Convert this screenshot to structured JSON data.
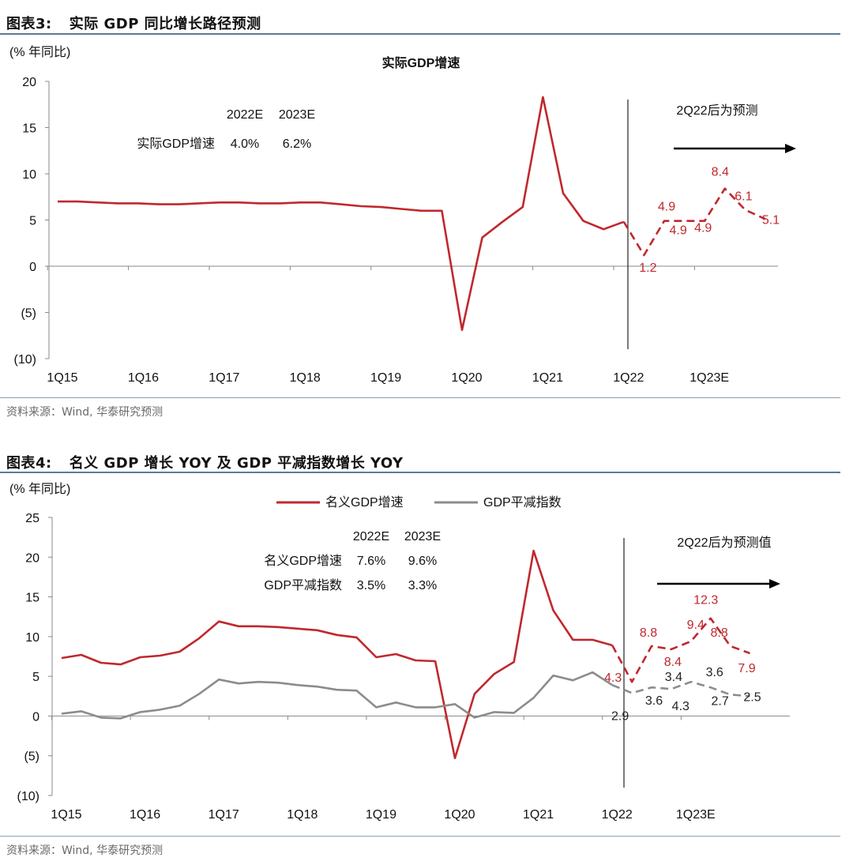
{
  "figure3": {
    "title_num": "图表3:",
    "title_text": "实际 GDP 同比增长路径预测",
    "source": "资料来源：Wind, 华泰研究预测",
    "chart_data": {
      "type": "line",
      "title": "实际GDP增速",
      "ylabel": "(% 年同比)",
      "ylim": [
        -10,
        20
      ],
      "yticks": [
        "20",
        "15",
        "10",
        "5",
        "0",
        "(5)",
        "(10)"
      ],
      "ytick_values": [
        20,
        15,
        10,
        5,
        0,
        -5,
        -10
      ],
      "xtick_labels": [
        "1Q15",
        "1Q16",
        "1Q17",
        "1Q18",
        "1Q19",
        "1Q20",
        "1Q21",
        "1Q22",
        "1Q23E"
      ],
      "forecast_note": "2Q22后为预测",
      "summary": {
        "headers": [
          "2022E",
          "2023E"
        ],
        "rows": [
          {
            "name": "实际GDP增速",
            "v2022": "4.0%",
            "v2023": "6.2%"
          }
        ]
      },
      "series": [
        {
          "name": "实际GDP增速",
          "color": "#c0282d",
          "actual": [
            7.0,
            7.0,
            6.9,
            6.8,
            6.8,
            6.7,
            6.7,
            6.8,
            6.9,
            6.9,
            6.8,
            6.8,
            6.9,
            6.9,
            6.7,
            6.5,
            6.4,
            6.2,
            6.0,
            6.0,
            -6.9,
            3.1,
            4.8,
            6.4,
            18.3,
            7.9,
            4.9,
            4.0,
            4.8
          ],
          "forecast_start_index": 28,
          "forecast": [
            4.8,
            1.2,
            4.9,
            4.9,
            4.9,
            8.4,
            6.1,
            5.1
          ],
          "forecast_labels": [
            "1.2",
            "4.9",
            "4.9",
            "4.9",
            "8.4",
            "6.1",
            "5.1"
          ]
        }
      ]
    }
  },
  "figure4": {
    "title_num": "图表4:",
    "title_text": "名义 GDP 增长 YOY 及 GDP 平减指数增长 YOY",
    "source": "资料来源：Wind, 华泰研究预测",
    "chart_data": {
      "type": "line",
      "ylabel": "(% 年同比)",
      "ylim": [
        -10,
        25
      ],
      "yticks": [
        "25",
        "20",
        "15",
        "10",
        "5",
        "0",
        "(5)",
        "(10)"
      ],
      "ytick_values": [
        25,
        20,
        15,
        10,
        5,
        0,
        -5,
        -10
      ],
      "xtick_labels": [
        "1Q15",
        "1Q16",
        "1Q17",
        "1Q18",
        "1Q19",
        "1Q20",
        "1Q21",
        "1Q22",
        "1Q23E"
      ],
      "forecast_note": "2Q22后为预测值",
      "legend": [
        "名义GDP增速",
        "GDP平减指数"
      ],
      "summary": {
        "headers": [
          "2022E",
          "2023E"
        ],
        "rows": [
          {
            "name": "名义GDP增速",
            "v2022": "7.6%",
            "v2023": "9.6%"
          },
          {
            "name": "GDP平减指数",
            "v2022": "3.5%",
            "v2023": "3.3%"
          }
        ]
      },
      "series": [
        {
          "name": "名义GDP增速",
          "color": "#c0282d",
          "actual": [
            7.3,
            7.7,
            6.7,
            6.5,
            7.4,
            7.6,
            8.1,
            9.8,
            11.9,
            11.3,
            11.3,
            11.2,
            11.0,
            10.8,
            10.2,
            9.9,
            7.4,
            7.8,
            7.0,
            6.9,
            -5.3,
            2.8,
            5.3,
            6.8,
            20.8,
            13.3,
            9.6,
            9.6,
            8.9
          ],
          "forecast_start_index": 28,
          "forecast": [
            8.9,
            4.3,
            8.8,
            8.4,
            9.4,
            12.3,
            8.8,
            7.9
          ],
          "forecast_labels": [
            "4.3",
            "8.8",
            "8.4",
            "9.4",
            "12.3",
            "8.8",
            "7.9"
          ]
        },
        {
          "name": "GDP平减指数",
          "color": "#8c8c8c",
          "actual": [
            0.3,
            0.6,
            -0.2,
            -0.3,
            0.5,
            0.8,
            1.3,
            2.8,
            4.6,
            4.1,
            4.3,
            4.2,
            3.9,
            3.7,
            3.3,
            3.2,
            1.1,
            1.7,
            1.1,
            1.1,
            1.5,
            -0.2,
            0.5,
            0.4,
            2.3,
            5.1,
            4.5,
            5.5,
            3.9
          ],
          "forecast_start_index": 28,
          "forecast": [
            3.9,
            2.9,
            3.6,
            3.4,
            4.3,
            3.6,
            2.7,
            2.5
          ],
          "forecast_labels": [
            "2.9",
            "3.6",
            "3.4",
            "4.3",
            "3.6",
            "2.7",
            "2.5"
          ]
        }
      ]
    }
  }
}
